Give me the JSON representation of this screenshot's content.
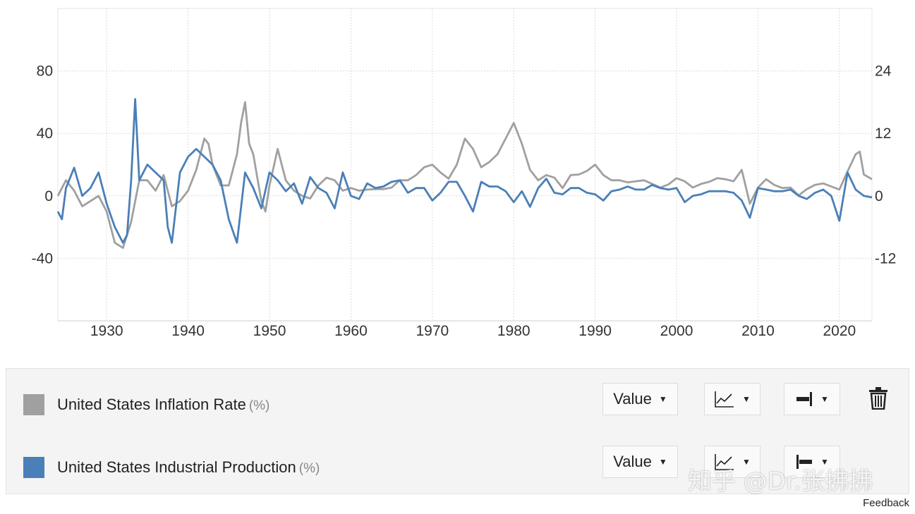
{
  "chart_data": {
    "type": "line",
    "x_range": [
      1924,
      2024
    ],
    "x_ticks": [
      "1930",
      "1940",
      "1950",
      "1960",
      "1970",
      "1980",
      "1990",
      "2000",
      "2010",
      "2020"
    ],
    "y_left": {
      "range": [
        -80,
        120
      ],
      "ticks": [
        "80",
        "40",
        "0",
        "-40"
      ],
      "tick_values": [
        80,
        40,
        0,
        -40
      ]
    },
    "y_right": {
      "range": [
        -24,
        36
      ],
      "ticks": [
        "24",
        "12",
        "0",
        "-12"
      ],
      "tick_values": [
        24,
        12,
        0,
        -12
      ]
    },
    "grid": true,
    "series": [
      {
        "name": "United States Inflation Rate",
        "unit": "(%)",
        "axis": "right",
        "color": "#a0a0a0",
        "points": [
          [
            1924,
            0
          ],
          [
            1925,
            3
          ],
          [
            1926,
            1
          ],
          [
            1927,
            -2
          ],
          [
            1928,
            -1
          ],
          [
            1929,
            0
          ],
          [
            1930,
            -3
          ],
          [
            1931,
            -9
          ],
          [
            1932,
            -10
          ],
          [
            1933,
            -5
          ],
          [
            1934,
            3
          ],
          [
            1935,
            3
          ],
          [
            1936,
            1
          ],
          [
            1937,
            4
          ],
          [
            1938,
            -2
          ],
          [
            1939,
            -1
          ],
          [
            1940,
            1
          ],
          [
            1941,
            5
          ],
          [
            1942,
            11
          ],
          [
            1942.5,
            10
          ],
          [
            1943,
            6
          ],
          [
            1944,
            2
          ],
          [
            1945,
            2
          ],
          [
            1946,
            8
          ],
          [
            1946.5,
            14
          ],
          [
            1947,
            18
          ],
          [
            1947.5,
            10
          ],
          [
            1948,
            8
          ],
          [
            1949,
            -1
          ],
          [
            1949.5,
            -3
          ],
          [
            1950,
            2
          ],
          [
            1951,
            9
          ],
          [
            1952,
            3
          ],
          [
            1953,
            1
          ],
          [
            1954,
            0
          ],
          [
            1955,
            -0.5
          ],
          [
            1956,
            2
          ],
          [
            1957,
            3.5
          ],
          [
            1958,
            3
          ],
          [
            1959,
            1
          ],
          [
            1960,
            1.5
          ],
          [
            1961,
            1
          ],
          [
            1962,
            1.2
          ],
          [
            1963,
            1.3
          ],
          [
            1964,
            1.3
          ],
          [
            1965,
            1.6
          ],
          [
            1966,
            3
          ],
          [
            1967,
            3
          ],
          [
            1968,
            4
          ],
          [
            1969,
            5.5
          ],
          [
            1970,
            6
          ],
          [
            1971,
            4.5
          ],
          [
            1972,
            3.3
          ],
          [
            1973,
            6
          ],
          [
            1974,
            11
          ],
          [
            1975,
            9
          ],
          [
            1976,
            5.5
          ],
          [
            1977,
            6.5
          ],
          [
            1978,
            8
          ],
          [
            1979,
            11
          ],
          [
            1980,
            14
          ],
          [
            1981,
            10
          ],
          [
            1982,
            5
          ],
          [
            1983,
            3
          ],
          [
            1984,
            4
          ],
          [
            1985,
            3.5
          ],
          [
            1986,
            1.5
          ],
          [
            1987,
            4
          ],
          [
            1988,
            4.1
          ],
          [
            1989,
            4.8
          ],
          [
            1990,
            6
          ],
          [
            1991,
            4
          ],
          [
            1992,
            3
          ],
          [
            1993,
            3
          ],
          [
            1994,
            2.6
          ],
          [
            1995,
            2.8
          ],
          [
            1996,
            3
          ],
          [
            1997,
            2.3
          ],
          [
            1998,
            1.6
          ],
          [
            1999,
            2.2
          ],
          [
            2000,
            3.4
          ],
          [
            2001,
            2.8
          ],
          [
            2002,
            1.6
          ],
          [
            2003,
            2.3
          ],
          [
            2004,
            2.7
          ],
          [
            2005,
            3.4
          ],
          [
            2006,
            3.2
          ],
          [
            2007,
            2.8
          ],
          [
            2008,
            5
          ],
          [
            2009,
            -1.5
          ],
          [
            2010,
            1.6
          ],
          [
            2011,
            3.2
          ],
          [
            2012,
            2.1
          ],
          [
            2013,
            1.5
          ],
          [
            2014,
            1.6
          ],
          [
            2015,
            0.1
          ],
          [
            2016,
            1.3
          ],
          [
            2017,
            2.1
          ],
          [
            2018,
            2.4
          ],
          [
            2019,
            1.8
          ],
          [
            2020,
            1.2
          ],
          [
            2021,
            4.7
          ],
          [
            2022,
            8
          ],
          [
            2022.5,
            8.5
          ],
          [
            2023,
            4.1
          ],
          [
            2024,
            3.2
          ]
        ]
      },
      {
        "name": "United States Industrial Production",
        "unit": "(%)",
        "axis": "left",
        "color": "#4a7fb8",
        "points": [
          [
            1924,
            -10
          ],
          [
            1924.5,
            -15
          ],
          [
            1925,
            5
          ],
          [
            1926,
            18
          ],
          [
            1927,
            0
          ],
          [
            1928,
            5
          ],
          [
            1929,
            15
          ],
          [
            1930,
            -5
          ],
          [
            1931,
            -20
          ],
          [
            1932,
            -30
          ],
          [
            1932.5,
            -25
          ],
          [
            1933,
            10
          ],
          [
            1933.5,
            62
          ],
          [
            1934,
            10
          ],
          [
            1935,
            20
          ],
          [
            1936,
            15
          ],
          [
            1937,
            10
          ],
          [
            1937.5,
            -20
          ],
          [
            1938,
            -30
          ],
          [
            1939,
            15
          ],
          [
            1940,
            25
          ],
          [
            1941,
            30
          ],
          [
            1942,
            25
          ],
          [
            1943,
            20
          ],
          [
            1944,
            10
          ],
          [
            1945,
            -15
          ],
          [
            1946,
            -30
          ],
          [
            1947,
            15
          ],
          [
            1948,
            5
          ],
          [
            1949,
            -8
          ],
          [
            1950,
            15
          ],
          [
            1951,
            10
          ],
          [
            1952,
            3
          ],
          [
            1953,
            8
          ],
          [
            1954,
            -5
          ],
          [
            1955,
            12
          ],
          [
            1956,
            5
          ],
          [
            1957,
            2
          ],
          [
            1958,
            -8
          ],
          [
            1959,
            15
          ],
          [
            1960,
            0
          ],
          [
            1961,
            -2
          ],
          [
            1962,
            8
          ],
          [
            1963,
            5
          ],
          [
            1964,
            6
          ],
          [
            1965,
            9
          ],
          [
            1966,
            10
          ],
          [
            1967,
            2
          ],
          [
            1968,
            5
          ],
          [
            1969,
            5
          ],
          [
            1970,
            -3
          ],
          [
            1971,
            2
          ],
          [
            1972,
            9
          ],
          [
            1973,
            9
          ],
          [
            1974,
            0
          ],
          [
            1975,
            -10
          ],
          [
            1976,
            9
          ],
          [
            1977,
            6
          ],
          [
            1978,
            6
          ],
          [
            1979,
            3
          ],
          [
            1980,
            -4
          ],
          [
            1981,
            3
          ],
          [
            1982,
            -7
          ],
          [
            1983,
            5
          ],
          [
            1984,
            11
          ],
          [
            1985,
            2
          ],
          [
            1986,
            1
          ],
          [
            1987,
            5
          ],
          [
            1988,
            5
          ],
          [
            1989,
            2
          ],
          [
            1990,
            1
          ],
          [
            1991,
            -3
          ],
          [
            1992,
            3
          ],
          [
            1993,
            4
          ],
          [
            1994,
            6
          ],
          [
            1995,
            4
          ],
          [
            1996,
            4
          ],
          [
            1997,
            7
          ],
          [
            1998,
            5
          ],
          [
            1999,
            4
          ],
          [
            2000,
            5
          ],
          [
            2001,
            -4
          ],
          [
            2002,
            0
          ],
          [
            2003,
            1
          ],
          [
            2004,
            3
          ],
          [
            2005,
            3
          ],
          [
            2006,
            3
          ],
          [
            2007,
            2
          ],
          [
            2008,
            -3
          ],
          [
            2009,
            -14
          ],
          [
            2010,
            5
          ],
          [
            2011,
            4
          ],
          [
            2012,
            3
          ],
          [
            2013,
            3
          ],
          [
            2014,
            4
          ],
          [
            2015,
            0
          ],
          [
            2016,
            -2
          ],
          [
            2017,
            2
          ],
          [
            2018,
            4
          ],
          [
            2019,
            0
          ],
          [
            2020,
            -16
          ],
          [
            2021,
            15
          ],
          [
            2022,
            4
          ],
          [
            2023,
            0
          ],
          [
            2024,
            -1
          ]
        ]
      }
    ]
  },
  "legend": {
    "rows": [
      {
        "name": "United States Inflation Rate",
        "unit": "(%)",
        "color": "#a0a0a0",
        "mode_label": "Value",
        "chart_type_icon": "line-chart-icon",
        "axis_icon": "right-axis-icon"
      },
      {
        "name": "United States Industrial Production",
        "unit": "(%)",
        "color": "#4a7fb8",
        "mode_label": "Value",
        "chart_type_icon": "line-chart-icon",
        "axis_icon": "left-axis-icon"
      }
    ],
    "delete_icon": "trash-icon"
  },
  "watermark": "知乎 @Dr.张拂拂",
  "feedback_label": "Feedback"
}
